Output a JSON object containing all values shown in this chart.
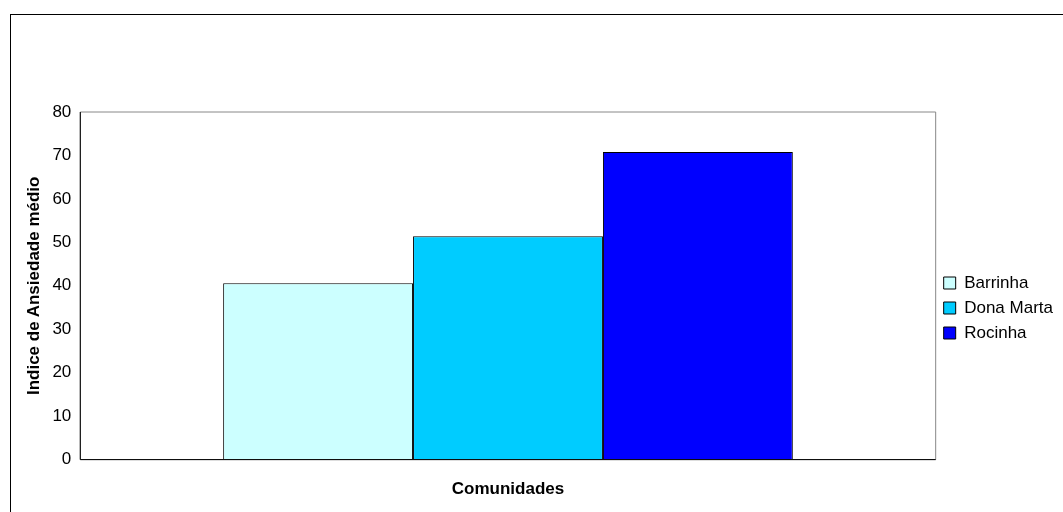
{
  "chart_data": {
    "type": "bar",
    "categories": [
      null
    ],
    "xlabel": "Comunidades",
    "ylabel": "Indice de Ansiedade médio",
    "series": [
      {
        "name": "Barrinha",
        "color": "#ccffff",
        "values": [
          40.6
        ]
      },
      {
        "name": "Dona Marta",
        "color": "#00ccff",
        "values": [
          51.4
        ]
      },
      {
        "name": "Rocinha",
        "color": "#0000ff",
        "values": [
          70.8
        ]
      }
    ],
    "ylim": [
      0,
      80
    ],
    "yticks": [
      0,
      10,
      20,
      30,
      40,
      50,
      60,
      70,
      80
    ],
    "grid": false,
    "legend": "right"
  }
}
